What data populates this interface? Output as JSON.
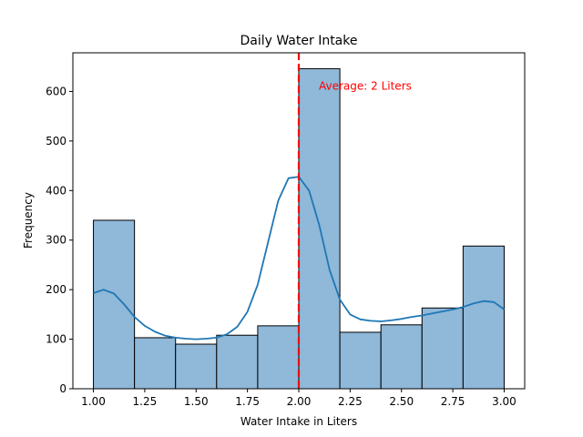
{
  "chart_data": {
    "type": "bar",
    "title": "Daily Water Intake",
    "xlabel": "Water Intake in Liters",
    "ylabel": "Frequency",
    "bin_edges": [
      1.0,
      1.2,
      1.4,
      1.6,
      1.8,
      2.0,
      2.2,
      2.4,
      2.6,
      2.8,
      3.0
    ],
    "values": [
      340,
      103,
      90,
      108,
      127,
      646,
      114,
      129,
      163,
      288
    ],
    "xlim": [
      0.9,
      3.1
    ],
    "ylim": [
      0,
      678
    ],
    "xticks": [
      "1.00",
      "1.25",
      "1.50",
      "1.75",
      "2.00",
      "2.25",
      "2.50",
      "2.75",
      "3.00"
    ],
    "yticks": [
      "0",
      "100",
      "200",
      "300",
      "400",
      "500",
      "600"
    ],
    "kde": {
      "x": [
        1.0,
        1.05,
        1.1,
        1.15,
        1.2,
        1.25,
        1.3,
        1.35,
        1.4,
        1.45,
        1.5,
        1.55,
        1.6,
        1.65,
        1.7,
        1.75,
        1.8,
        1.85,
        1.9,
        1.95,
        2.0,
        2.05,
        2.1,
        2.15,
        2.2,
        2.25,
        2.3,
        2.35,
        2.4,
        2.45,
        2.5,
        2.55,
        2.6,
        2.65,
        2.7,
        2.75,
        2.8,
        2.85,
        2.9,
        2.95,
        3.0
      ],
      "y": [
        193,
        200,
        192,
        170,
        145,
        127,
        115,
        107,
        103,
        101,
        100,
        101,
        103,
        110,
        125,
        155,
        210,
        295,
        380,
        425,
        428,
        400,
        330,
        240,
        180,
        150,
        140,
        137,
        136,
        138,
        141,
        145,
        148,
        152,
        156,
        160,
        165,
        172,
        177,
        175,
        160
      ]
    },
    "avg_line": {
      "x": 2.0,
      "label": "Average: 2 Liters",
      "color": "#ff0000"
    },
    "bar_color": "#8fb8d9",
    "line_color": "#1f77b4"
  }
}
